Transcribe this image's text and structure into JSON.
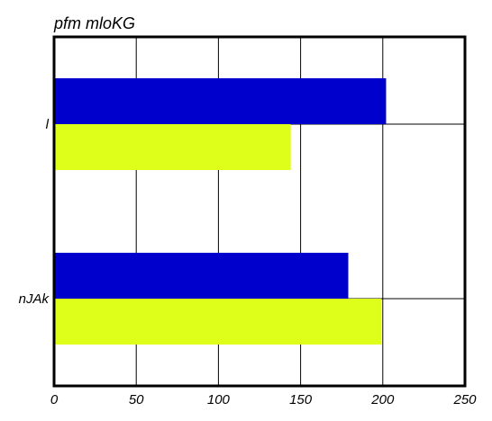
{
  "chart_data": {
    "type": "bar",
    "orientation": "horizontal",
    "title": "pfm mloKG",
    "xlabel": "",
    "ylabel": "",
    "categories": [
      "l",
      "nJAk"
    ],
    "series": [
      {
        "values": [
          202,
          179
        ],
        "color": "#0000cc"
      },
      {
        "values": [
          144,
          199
        ],
        "color": "#ddff1a"
      }
    ],
    "xlim": [
      0,
      250
    ],
    "xticks": [
      0,
      50,
      100,
      150,
      200,
      250
    ],
    "grid": true,
    "legend": "none"
  }
}
